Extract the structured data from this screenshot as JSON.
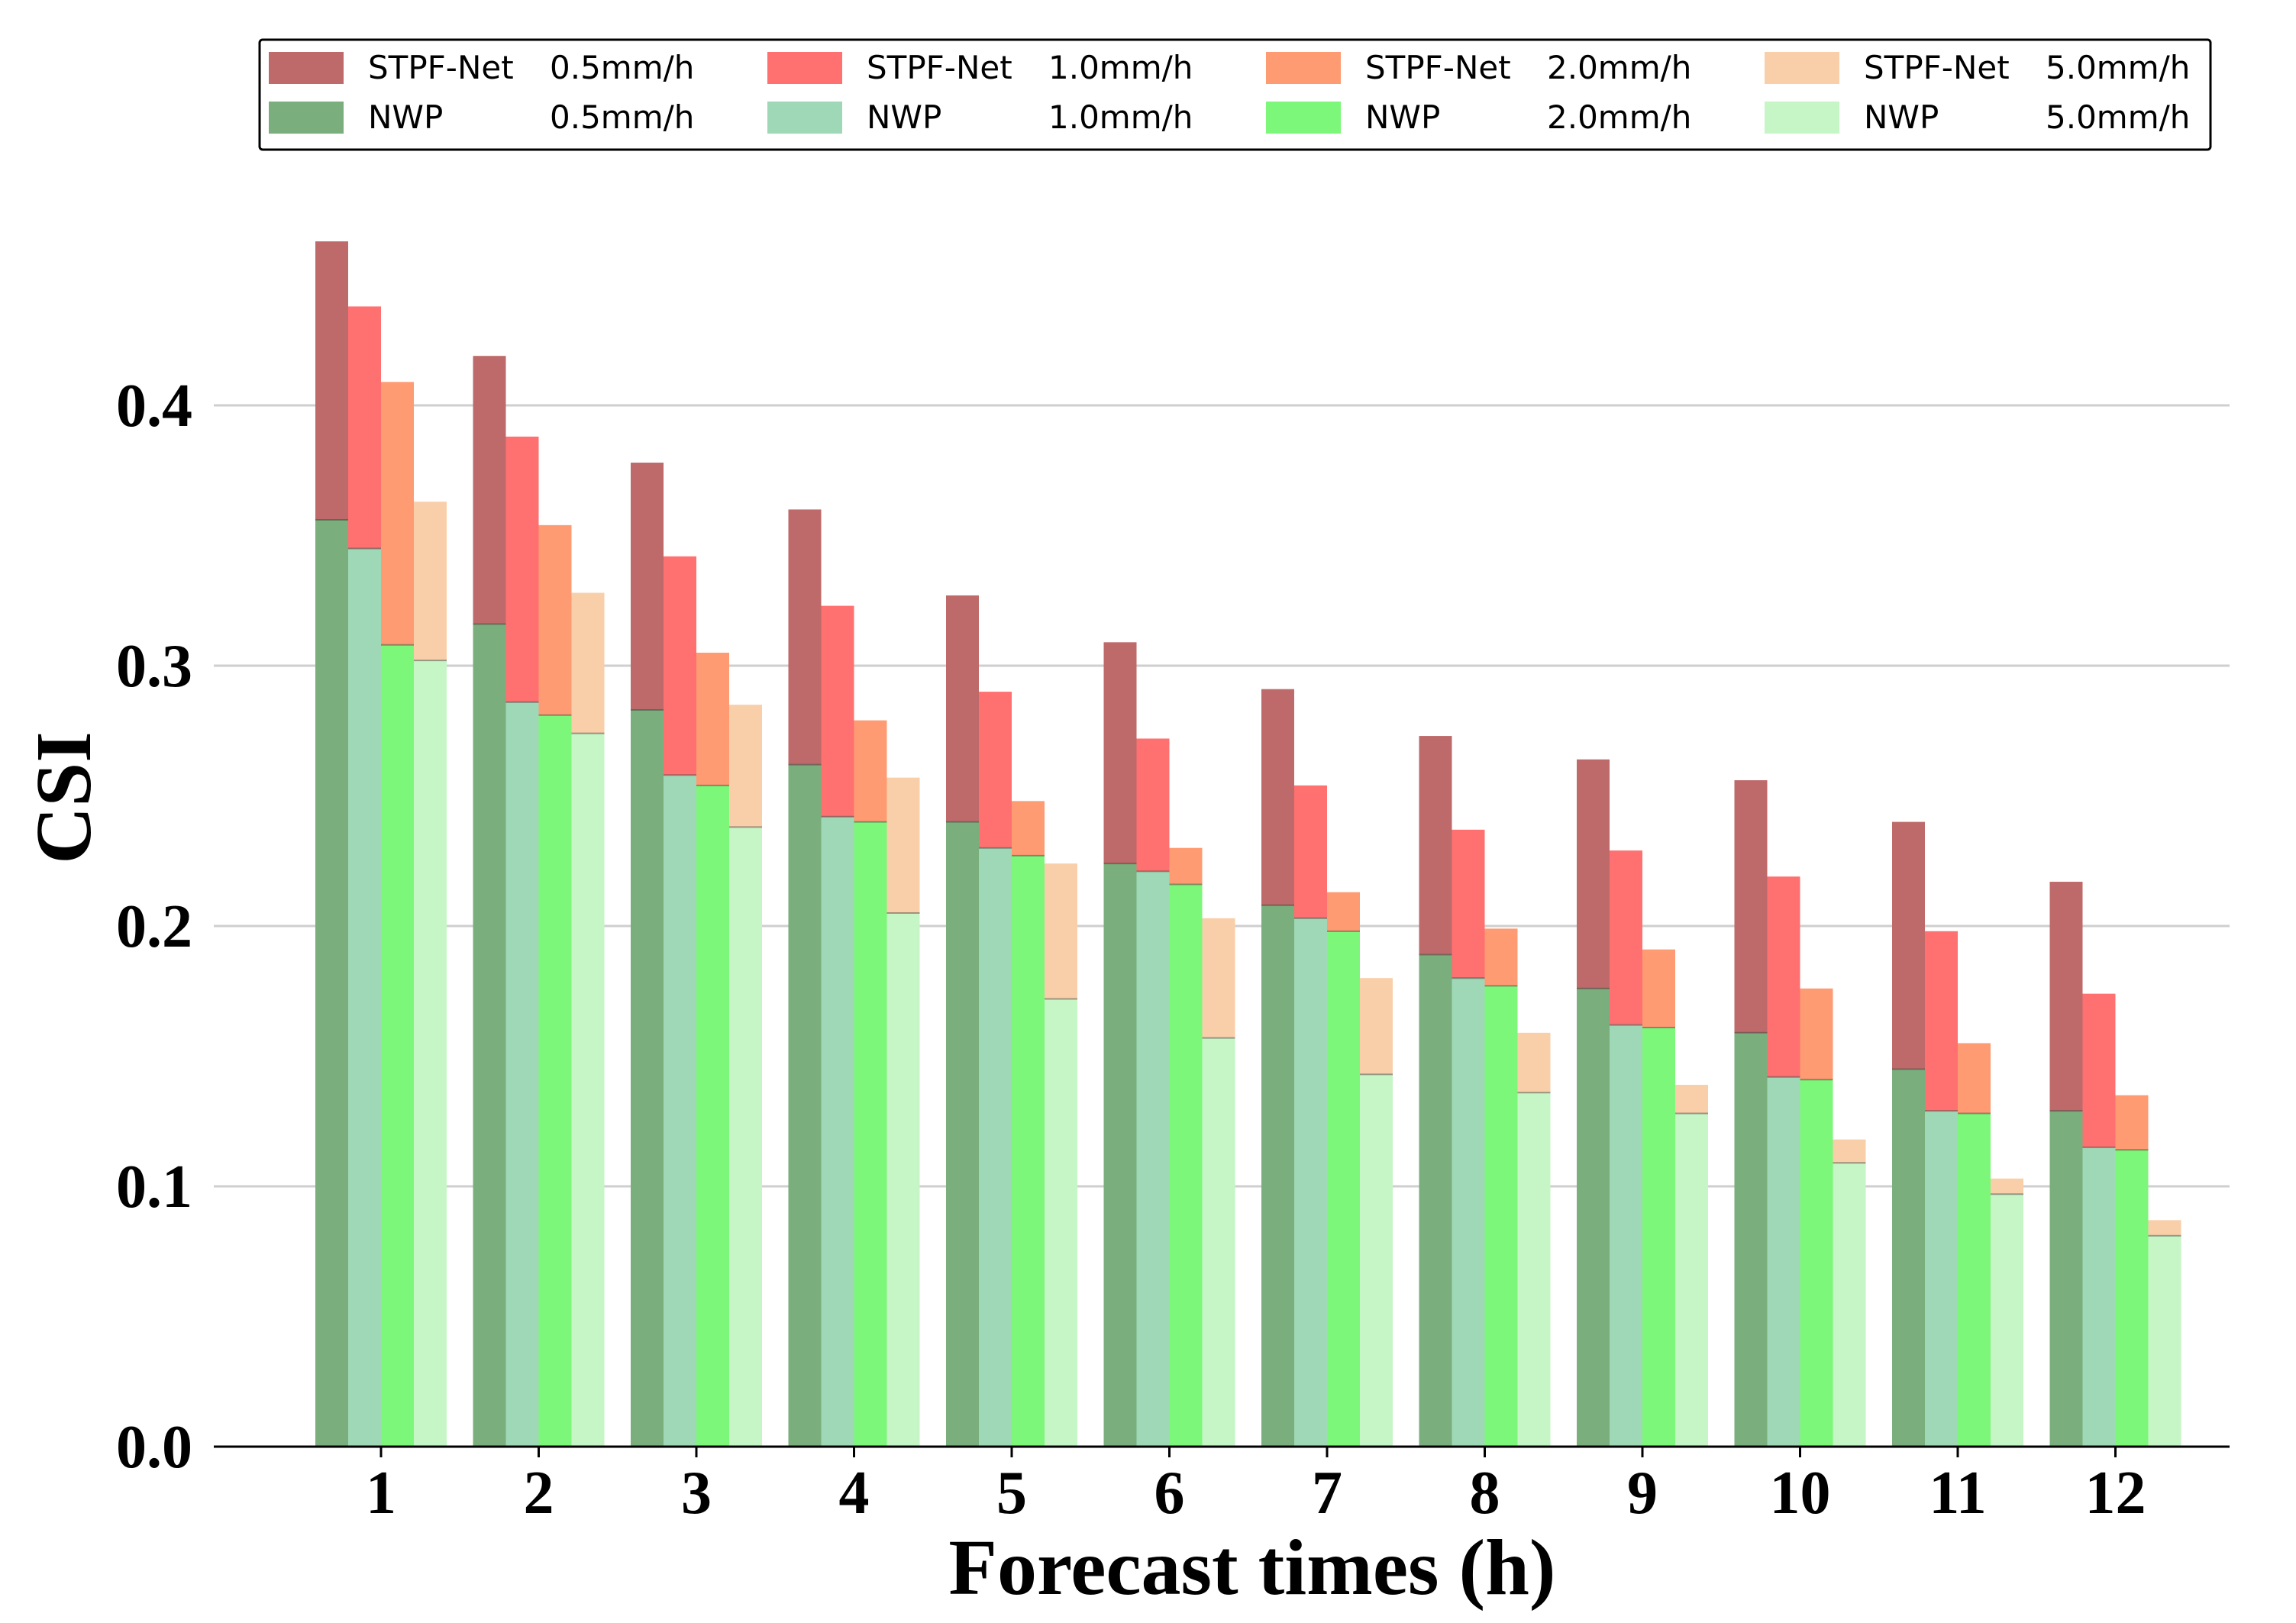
{
  "chart_data": {
    "type": "bar",
    "title": "",
    "xlabel": "Forecast times (h)",
    "ylabel": "CSI",
    "ylim": [
      0,
      0.5
    ],
    "yticks": [
      0.0,
      0.1,
      0.2,
      0.3,
      0.4
    ],
    "ytick_labels": [
      "0.0",
      "0.1",
      "0.2",
      "0.3",
      "0.4"
    ],
    "grid": "horizontal",
    "legend_position": "top",
    "categories": [
      "1",
      "2",
      "3",
      "4",
      "5",
      "6",
      "7",
      "8",
      "9",
      "10",
      "11",
      "12"
    ],
    "series": [
      {
        "name": "STPF-Net",
        "threshold": "0.5mm/h",
        "color": "#be6a6a",
        "values": [
          0.463,
          0.419,
          0.378,
          0.36,
          0.327,
          0.309,
          0.291,
          0.273,
          0.264,
          0.256,
          0.24,
          0.217
        ]
      },
      {
        "name": "STPF-Net",
        "threshold": "1.0mm/h",
        "color": "#ff7070",
        "values": [
          0.438,
          0.388,
          0.342,
          0.323,
          0.29,
          0.272,
          0.254,
          0.237,
          0.229,
          0.219,
          0.198,
          0.174
        ]
      },
      {
        "name": "STPF-Net",
        "threshold": "2.0mm/h",
        "color": "#ff9b73",
        "values": [
          0.409,
          0.354,
          0.305,
          0.279,
          0.248,
          0.23,
          0.213,
          0.199,
          0.191,
          0.176,
          0.155,
          0.135
        ]
      },
      {
        "name": "STPF-Net",
        "threshold": "5.0mm/h",
        "color": "#f9cfaa",
        "values": [
          0.363,
          0.328,
          0.285,
          0.257,
          0.224,
          0.203,
          0.18,
          0.159,
          0.139,
          0.118,
          0.103,
          0.087
        ]
      },
      {
        "name": "NWP",
        "threshold": "0.5mm/h",
        "color": "#7aae7c",
        "values": [
          0.356,
          0.316,
          0.283,
          0.262,
          0.24,
          0.224,
          0.208,
          0.189,
          0.176,
          0.159,
          0.145,
          0.129
        ]
      },
      {
        "name": "NWP",
        "threshold": "1.0mm/h",
        "color": "#9fd8b6",
        "values": [
          0.345,
          0.286,
          0.258,
          0.242,
          0.23,
          0.221,
          0.203,
          0.18,
          0.162,
          0.142,
          0.129,
          0.115
        ]
      },
      {
        "name": "NWP",
        "threshold": "2.0mm/h",
        "color": "#7df77a",
        "values": [
          0.308,
          0.281,
          0.254,
          0.24,
          0.227,
          0.216,
          0.198,
          0.177,
          0.161,
          0.141,
          0.128,
          0.114
        ]
      },
      {
        "name": "NWP",
        "threshold": "5.0mm/h",
        "color": "#c6f5c6",
        "values": [
          0.302,
          0.274,
          0.238,
          0.205,
          0.172,
          0.157,
          0.143,
          0.136,
          0.128,
          0.109,
          0.097,
          0.081
        ]
      }
    ]
  }
}
